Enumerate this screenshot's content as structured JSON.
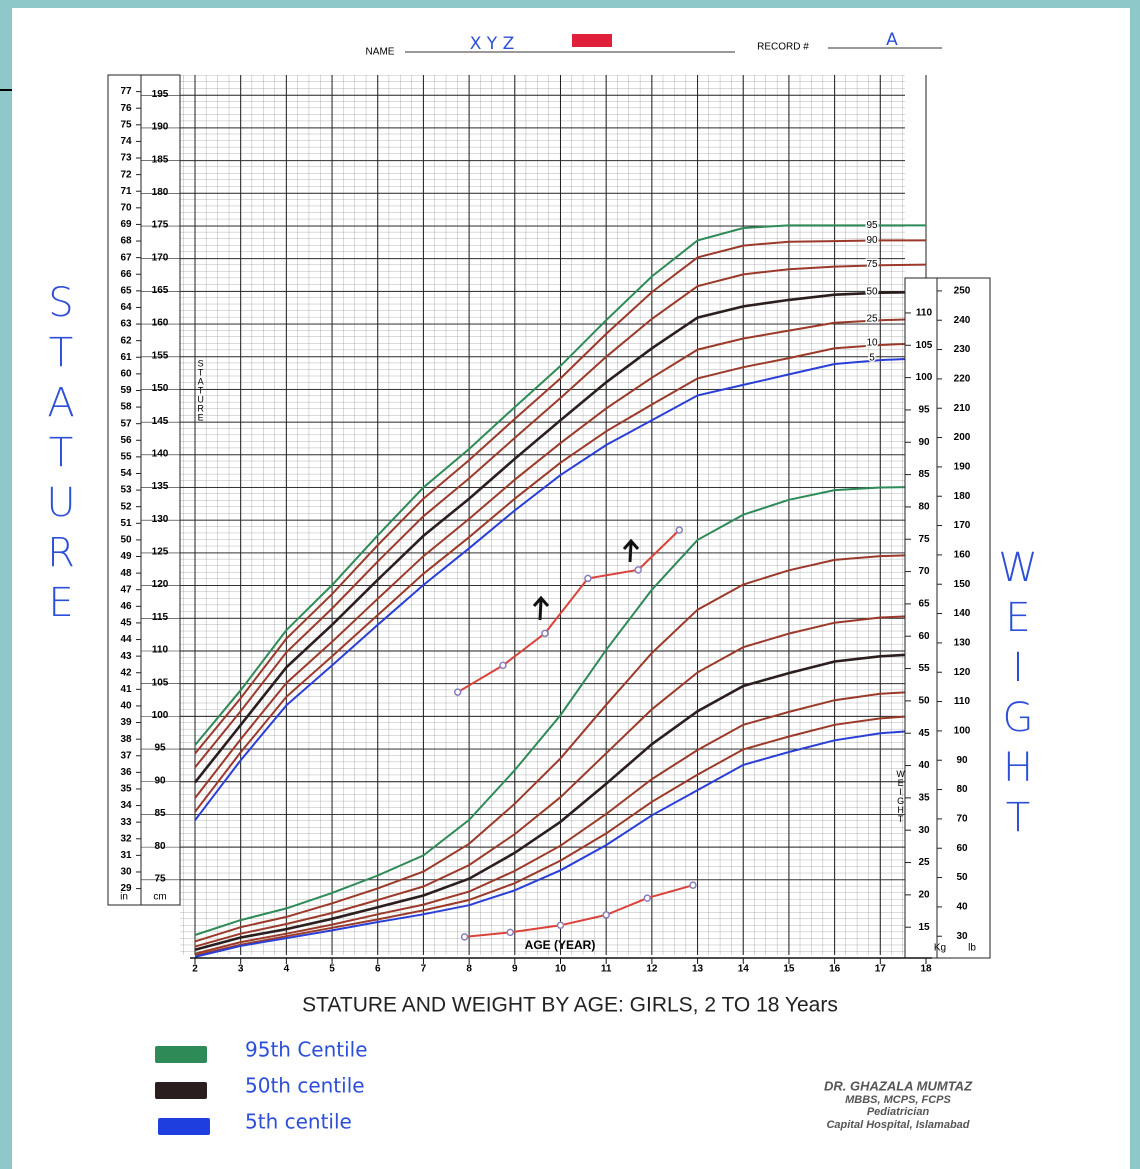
{
  "header": {
    "name_label": "NAME",
    "name": "X Y Z",
    "record_label": "RECORD #",
    "record": "A"
  },
  "side_labels": {
    "left": "STATURE",
    "right": "WEIGHT"
  },
  "footer": {
    "lines": [
      "DR. GHAZALA MUMTAZ",
      "MBBS, MCPS, FCPS",
      "Pediatrician",
      "Capital Hospital, Islamabad"
    ]
  },
  "chart_data": {
    "type": "line",
    "title": "STATURE AND WEIGHT BY AGE: GIRLS, 2 TO 18 Years",
    "x_label": "AGE (YEAR)",
    "stature_label": "STATURE",
    "weight_label": "WEIGHT",
    "x": [
      2,
      3,
      4,
      5,
      6,
      7,
      8,
      9,
      10,
      11,
      12,
      13,
      14,
      15,
      16,
      17,
      18
    ],
    "xlim": [
      2,
      18
    ],
    "xticks": [
      2,
      3,
      4,
      5,
      6,
      7,
      8,
      9,
      10,
      11,
      12,
      13,
      14,
      15,
      16,
      17,
      18
    ],
    "ylim": [
      63.5,
      198.1
    ],
    "yticks": [
      75,
      80,
      85,
      90,
      95,
      100,
      105,
      110,
      115,
      120,
      125,
      130,
      135,
      140,
      145,
      150,
      155,
      160,
      165,
      170,
      175,
      180,
      185,
      190,
      195
    ],
    "y_unit": "cm",
    "y2lim": [
      10.7,
      146.8
    ],
    "y2ticks": [
      15,
      20,
      25,
      30,
      35,
      40,
      45,
      50,
      55,
      60,
      65,
      70,
      75,
      80,
      85,
      90,
      95,
      100,
      105,
      110
    ],
    "y2_unit": "Kg",
    "inch_axis": {
      "lim": [
        25,
        78
      ],
      "unit": "in",
      "ticks": [
        29,
        30,
        31,
        32,
        33,
        34,
        35,
        36,
        37,
        38,
        39,
        40,
        41,
        42,
        43,
        44,
        45,
        46,
        47,
        48,
        49,
        50,
        51,
        52,
        53,
        54,
        55,
        56,
        57,
        58,
        59,
        60,
        61,
        62,
        63,
        64,
        65,
        66,
        67,
        68,
        69,
        70,
        71,
        72,
        73,
        74,
        75,
        76,
        77
      ]
    },
    "lb_axis": {
      "lim": [
        23.6,
        323.6
      ],
      "unit": "lb",
      "ticks": [
        30,
        40,
        50,
        60,
        70,
        80,
        90,
        100,
        110,
        120,
        130,
        140,
        150,
        160,
        170,
        180,
        190,
        200,
        210,
        220,
        230,
        240,
        250
      ]
    },
    "grid": true,
    "series": [
      {
        "name": "95",
        "color": "#2e8b57",
        "values": [
          95.6,
          104,
          113.2,
          120.1,
          127.7,
          135,
          140.9,
          147.3,
          153.6,
          160.6,
          167.3,
          172.8,
          174.7,
          175.1,
          175.1,
          175.1,
          175.1
        ]
      },
      {
        "name": "90",
        "color": "#9b3a2a",
        "values": [
          94.3,
          102.8,
          111.9,
          118.7,
          126.2,
          133.3,
          139.2,
          145.5,
          151.7,
          158.5,
          164.9,
          170.2,
          172.0,
          172.6,
          172.7,
          172.8,
          172.8
        ]
      },
      {
        "name": "75",
        "color": "#9b3a2a",
        "values": [
          92.2,
          100.8,
          109.8,
          116.5,
          123.7,
          130.6,
          136.4,
          142.6,
          148.7,
          155.0,
          160.8,
          165.8,
          167.6,
          168.4,
          168.8,
          169.0,
          169.1
        ]
      },
      {
        "name": "50",
        "color": "#2b1e1e",
        "values": [
          89.9,
          98.7,
          107.5,
          114.0,
          120.9,
          127.6,
          133.3,
          139.4,
          145.3,
          151.1,
          156.3,
          161.0,
          162.7,
          163.7,
          164.5,
          164.8,
          164.9
        ]
      },
      {
        "name": "25",
        "color": "#9b3a2a",
        "values": [
          87.5,
          96.5,
          105.1,
          111.4,
          118.0,
          124.5,
          130.2,
          136.2,
          141.8,
          147.1,
          151.8,
          156.1,
          157.8,
          159.0,
          160.2,
          160.6,
          160.8
        ]
      },
      {
        "name": "10",
        "color": "#9b3a2a",
        "values": [
          85.4,
          94.5,
          103.0,
          109.2,
          115.5,
          121.8,
          127.4,
          133.3,
          138.8,
          143.6,
          147.7,
          151.7,
          153.4,
          154.8,
          156.3,
          156.8,
          157.1
        ]
      },
      {
        "name": "5",
        "color": "#2a3fd6",
        "values": [
          84.1,
          93.3,
          101.7,
          107.8,
          114.0,
          120.1,
          125.7,
          131.5,
          136.9,
          141.5,
          145.3,
          149.1,
          150.7,
          152.3,
          153.9,
          154.5,
          154.8
        ]
      },
      {
        "axis": "y2",
        "color": "#2e8b57",
        "values": [
          13.8,
          16.1,
          17.9,
          20.3,
          23.0,
          26.1,
          31.6,
          39.3,
          47.8,
          57.9,
          67.2,
          74.9,
          78.8,
          81.1,
          82.6,
          83.0,
          83.1
        ]
      },
      {
        "axis": "y2",
        "color": "#9b3a2a",
        "values": [
          12.8,
          15.0,
          16.6,
          18.7,
          21.0,
          23.6,
          27.9,
          34.1,
          41.1,
          49.4,
          57.4,
          64.1,
          68.0,
          70.2,
          71.8,
          72.4,
          72.6
        ]
      },
      {
        "axis": "y2",
        "color": "#9b3a2a",
        "values": [
          12.0,
          14.0,
          15.5,
          17.2,
          19.2,
          21.3,
          24.6,
          29.4,
          35.1,
          41.9,
          48.7,
          54.4,
          58.3,
          60.4,
          62.1,
          62.9,
          63.2
        ]
      },
      {
        "axis": "y2",
        "color": "#2b1e1e",
        "values": [
          11.5,
          13.4,
          14.7,
          16.3,
          18.1,
          19.9,
          22.5,
          26.5,
          31.3,
          37.2,
          43.3,
          48.4,
          52.3,
          54.3,
          56.1,
          56.9,
          57.3
        ]
      },
      {
        "axis": "y2",
        "color": "#9b3a2a",
        "values": [
          10.9,
          12.7,
          14.0,
          15.4,
          17.0,
          18.5,
          20.5,
          23.7,
          27.6,
          32.5,
          37.9,
          42.4,
          46.3,
          48.3,
          50.1,
          51.1,
          51.5
        ]
      },
      {
        "axis": "y2",
        "color": "#9b3a2a",
        "values": [
          10.6,
          12.3,
          13.6,
          14.9,
          16.2,
          17.6,
          19.2,
          21.8,
          25.3,
          29.5,
          34.4,
          38.6,
          42.5,
          44.5,
          46.3,
          47.3,
          47.8
        ]
      },
      {
        "axis": "y2",
        "color": "#2a3fd6",
        "values": [
          10.4,
          12.1,
          13.3,
          14.5,
          15.8,
          17.0,
          18.4,
          20.7,
          23.8,
          27.7,
          32.3,
          36.2,
          40.1,
          42.1,
          43.9,
          45.0,
          45.5
        ]
      },
      {
        "color": "#d9433a",
        "markers": true,
        "x": [
          7.75,
          8.74,
          9.66,
          10.6,
          11.7,
          12.6
        ],
        "values": [
          103.7,
          107.8,
          112.7,
          121.1,
          122.4,
          128.5
        ]
      },
      {
        "axis": "y2",
        "color": "#d9433a",
        "markers": true,
        "x": [
          7.9,
          8.9,
          10.0,
          11.0,
          11.9,
          12.9
        ],
        "values": [
          13.5,
          14.2,
          15.3,
          16.9,
          19.5,
          21.5
        ]
      }
    ],
    "legend": [
      {
        "label": "95th Centile",
        "color": "#2e8b57"
      },
      {
        "label": "50th centile",
        "color": "#2b1e1e"
      },
      {
        "label": "5th centile",
        "color": "#1f3ee0"
      }
    ]
  }
}
